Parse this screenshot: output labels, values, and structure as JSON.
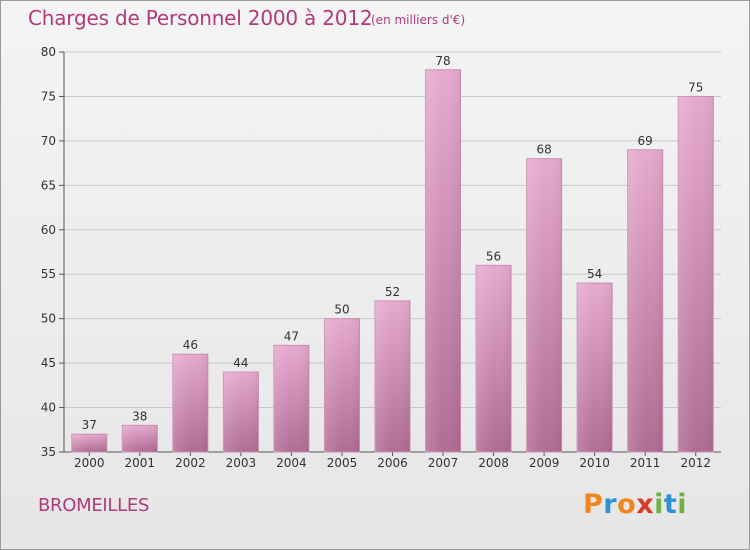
{
  "header": {
    "title": "Charges de Personnel 2000 à 2012",
    "subtitle": "(en milliers d'€)"
  },
  "footer": {
    "commune": "BROMEILLES",
    "brand": "Proxiti",
    "brand_colors": [
      "#f0871e",
      "#2f93d3",
      "#f0871e",
      "#d93a2b",
      "#6db33f",
      "#2f93d3",
      "#6db33f"
    ]
  },
  "colors": {
    "accent": "#b03a7c",
    "bar_top": "#e7a9cf",
    "bar_bottom": "#b06c94"
  },
  "chart_data": {
    "type": "bar",
    "title": "Charges de Personnel 2000 à 2012",
    "subtitle": "(en milliers d'€)",
    "xlabel": "",
    "ylabel": "",
    "categories": [
      "2000",
      "2001",
      "2002",
      "2003",
      "2004",
      "2005",
      "2006",
      "2007",
      "2008",
      "2009",
      "2010",
      "2011",
      "2012"
    ],
    "values": [
      37,
      38,
      46,
      44,
      47,
      50,
      52,
      78,
      56,
      68,
      54,
      69,
      75
    ],
    "ylim": [
      35,
      80
    ],
    "yticks": [
      35,
      40,
      45,
      50,
      55,
      60,
      65,
      70,
      75,
      80
    ],
    "grid": true,
    "data_labels": true
  }
}
